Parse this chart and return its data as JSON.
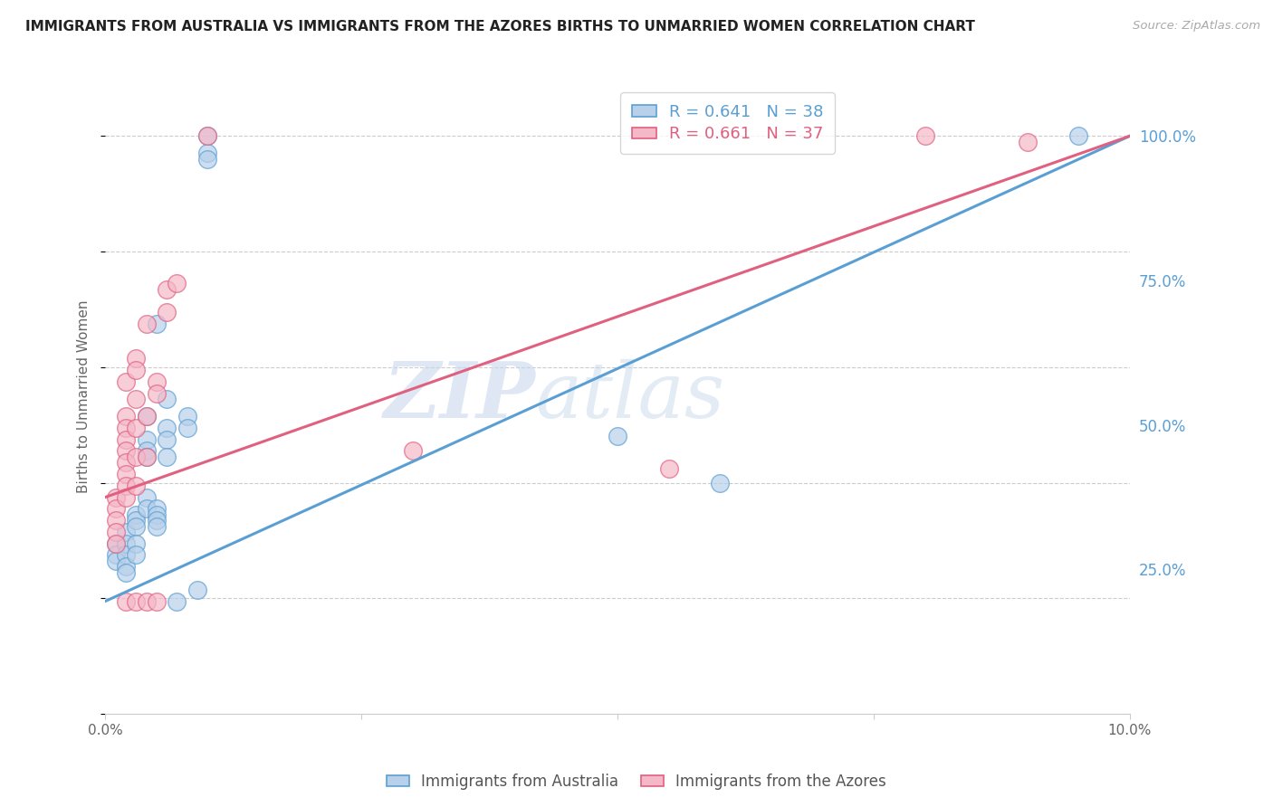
{
  "title": "IMMIGRANTS FROM AUSTRALIA VS IMMIGRANTS FROM THE AZORES BIRTHS TO UNMARRIED WOMEN CORRELATION CHART",
  "source": "Source: ZipAtlas.com",
  "ylabel": "Births to Unmarried Women",
  "ytick_values": [
    0.25,
    0.5,
    0.75,
    1.0
  ],
  "legend_label_blue": "Immigrants from Australia",
  "legend_label_pink": "Immigrants from the Azores",
  "R_blue": 0.641,
  "N_blue": 38,
  "R_pink": 0.661,
  "N_pink": 37,
  "blue_color": "#b8d0ea",
  "pink_color": "#f5b8c8",
  "blue_line_color": "#5a9fd4",
  "pink_line_color": "#e06080",
  "blue_scatter": [
    [
      0.001,
      0.295
    ],
    [
      0.001,
      0.275
    ],
    [
      0.001,
      0.265
    ],
    [
      0.002,
      0.315
    ],
    [
      0.002,
      0.295
    ],
    [
      0.002,
      0.275
    ],
    [
      0.002,
      0.255
    ],
    [
      0.002,
      0.245
    ],
    [
      0.003,
      0.345
    ],
    [
      0.003,
      0.335
    ],
    [
      0.003,
      0.325
    ],
    [
      0.003,
      0.295
    ],
    [
      0.003,
      0.275
    ],
    [
      0.004,
      0.515
    ],
    [
      0.004,
      0.475
    ],
    [
      0.004,
      0.455
    ],
    [
      0.004,
      0.445
    ],
    [
      0.004,
      0.375
    ],
    [
      0.004,
      0.355
    ],
    [
      0.005,
      0.675
    ],
    [
      0.005,
      0.355
    ],
    [
      0.005,
      0.345
    ],
    [
      0.005,
      0.335
    ],
    [
      0.005,
      0.325
    ],
    [
      0.006,
      0.545
    ],
    [
      0.006,
      0.495
    ],
    [
      0.006,
      0.475
    ],
    [
      0.006,
      0.445
    ],
    [
      0.007,
      0.195
    ],
    [
      0.008,
      0.515
    ],
    [
      0.008,
      0.495
    ],
    [
      0.009,
      0.215
    ],
    [
      0.01,
      1.0
    ],
    [
      0.01,
      0.97
    ],
    [
      0.01,
      0.96
    ],
    [
      0.05,
      0.48
    ],
    [
      0.06,
      0.4
    ],
    [
      0.095,
      1.0
    ]
  ],
  "pink_scatter": [
    [
      0.001,
      0.375
    ],
    [
      0.001,
      0.355
    ],
    [
      0.001,
      0.335
    ],
    [
      0.001,
      0.315
    ],
    [
      0.001,
      0.295
    ],
    [
      0.002,
      0.575
    ],
    [
      0.002,
      0.515
    ],
    [
      0.002,
      0.495
    ],
    [
      0.002,
      0.475
    ],
    [
      0.002,
      0.455
    ],
    [
      0.002,
      0.435
    ],
    [
      0.002,
      0.415
    ],
    [
      0.002,
      0.395
    ],
    [
      0.002,
      0.375
    ],
    [
      0.002,
      0.195
    ],
    [
      0.003,
      0.615
    ],
    [
      0.003,
      0.595
    ],
    [
      0.003,
      0.545
    ],
    [
      0.003,
      0.495
    ],
    [
      0.003,
      0.445
    ],
    [
      0.003,
      0.395
    ],
    [
      0.003,
      0.195
    ],
    [
      0.004,
      0.675
    ],
    [
      0.004,
      0.515
    ],
    [
      0.004,
      0.445
    ],
    [
      0.004,
      0.195
    ],
    [
      0.005,
      0.575
    ],
    [
      0.005,
      0.555
    ],
    [
      0.005,
      0.195
    ],
    [
      0.006,
      0.735
    ],
    [
      0.006,
      0.695
    ],
    [
      0.007,
      0.745
    ],
    [
      0.01,
      1.0
    ],
    [
      0.03,
      0.455
    ],
    [
      0.055,
      0.425
    ],
    [
      0.08,
      1.0
    ],
    [
      0.09,
      0.99
    ]
  ],
  "blue_line": [
    [
      0.0,
      0.195
    ],
    [
      0.1,
      1.0
    ]
  ],
  "pink_line": [
    [
      0.0,
      0.375
    ],
    [
      0.1,
      1.0
    ]
  ],
  "xmin": 0.0,
  "xmax": 0.1,
  "ymin": 0.0,
  "ymax": 1.1,
  "watermark_zip": "ZIP",
  "watermark_atlas": "atlas",
  "background_color": "#ffffff",
  "grid_color": "#cccccc",
  "right_tick_color": "#5a9fd4"
}
